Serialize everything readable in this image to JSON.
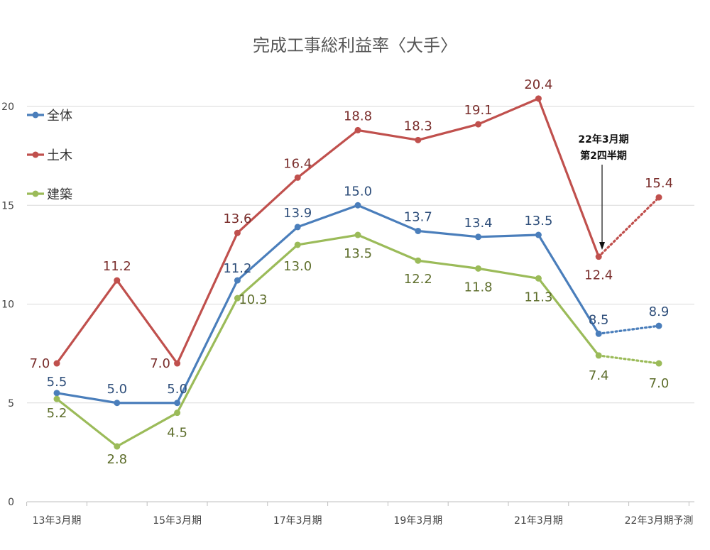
{
  "chart_data": {
    "type": "line",
    "title": "完成工事総利益率〈大手〉",
    "categories": [
      "13年3月期",
      "",
      "15年3月期",
      "",
      "17年3月期",
      "",
      "19年3月期",
      "",
      "21年3月期",
      "",
      "22年3月期予測"
    ],
    "ylim": [
      0,
      20
    ],
    "yticks": [
      0,
      5,
      10,
      15,
      20
    ],
    "grid": true,
    "legend_position": "left",
    "series": [
      {
        "name": "全体",
        "color": "#4a7ebb",
        "values": [
          5.5,
          5.0,
          5.0,
          11.2,
          13.9,
          15.0,
          13.7,
          13.4,
          13.5,
          8.5,
          8.9
        ],
        "labels": [
          "5.5",
          "5.0",
          "5.0",
          "11.2",
          "13.9",
          "15.0",
          "13.7",
          "13.4",
          "13.5",
          "8.5",
          "8.9"
        ],
        "label_color": "#2e4e7a"
      },
      {
        "name": "土木",
        "color": "#c0504d",
        "values": [
          7.0,
          11.2,
          7.0,
          13.6,
          16.4,
          18.8,
          18.3,
          19.1,
          20.4,
          12.4,
          15.4
        ],
        "labels": [
          "7.0",
          "11.2",
          "7.0",
          "13.6",
          "16.4",
          "18.8",
          "18.3",
          "19.1",
          "20.4",
          "12.4",
          "15.4"
        ],
        "label_color": "#7a2e2c"
      },
      {
        "name": "建築",
        "color": "#9bbb59",
        "values": [
          5.2,
          2.8,
          4.5,
          10.3,
          13.0,
          13.5,
          12.2,
          11.8,
          11.3,
          7.4,
          7.0
        ],
        "labels": [
          "5.2",
          "2.8",
          "4.5",
          "10.3",
          "13.0",
          "13.5",
          "12.2",
          "11.8",
          "11.3",
          "7.4",
          "7.0"
        ],
        "label_color": "#5e6e2c"
      }
    ],
    "annotation": {
      "line1": "22年3月期",
      "line2": "第2四半期"
    }
  }
}
